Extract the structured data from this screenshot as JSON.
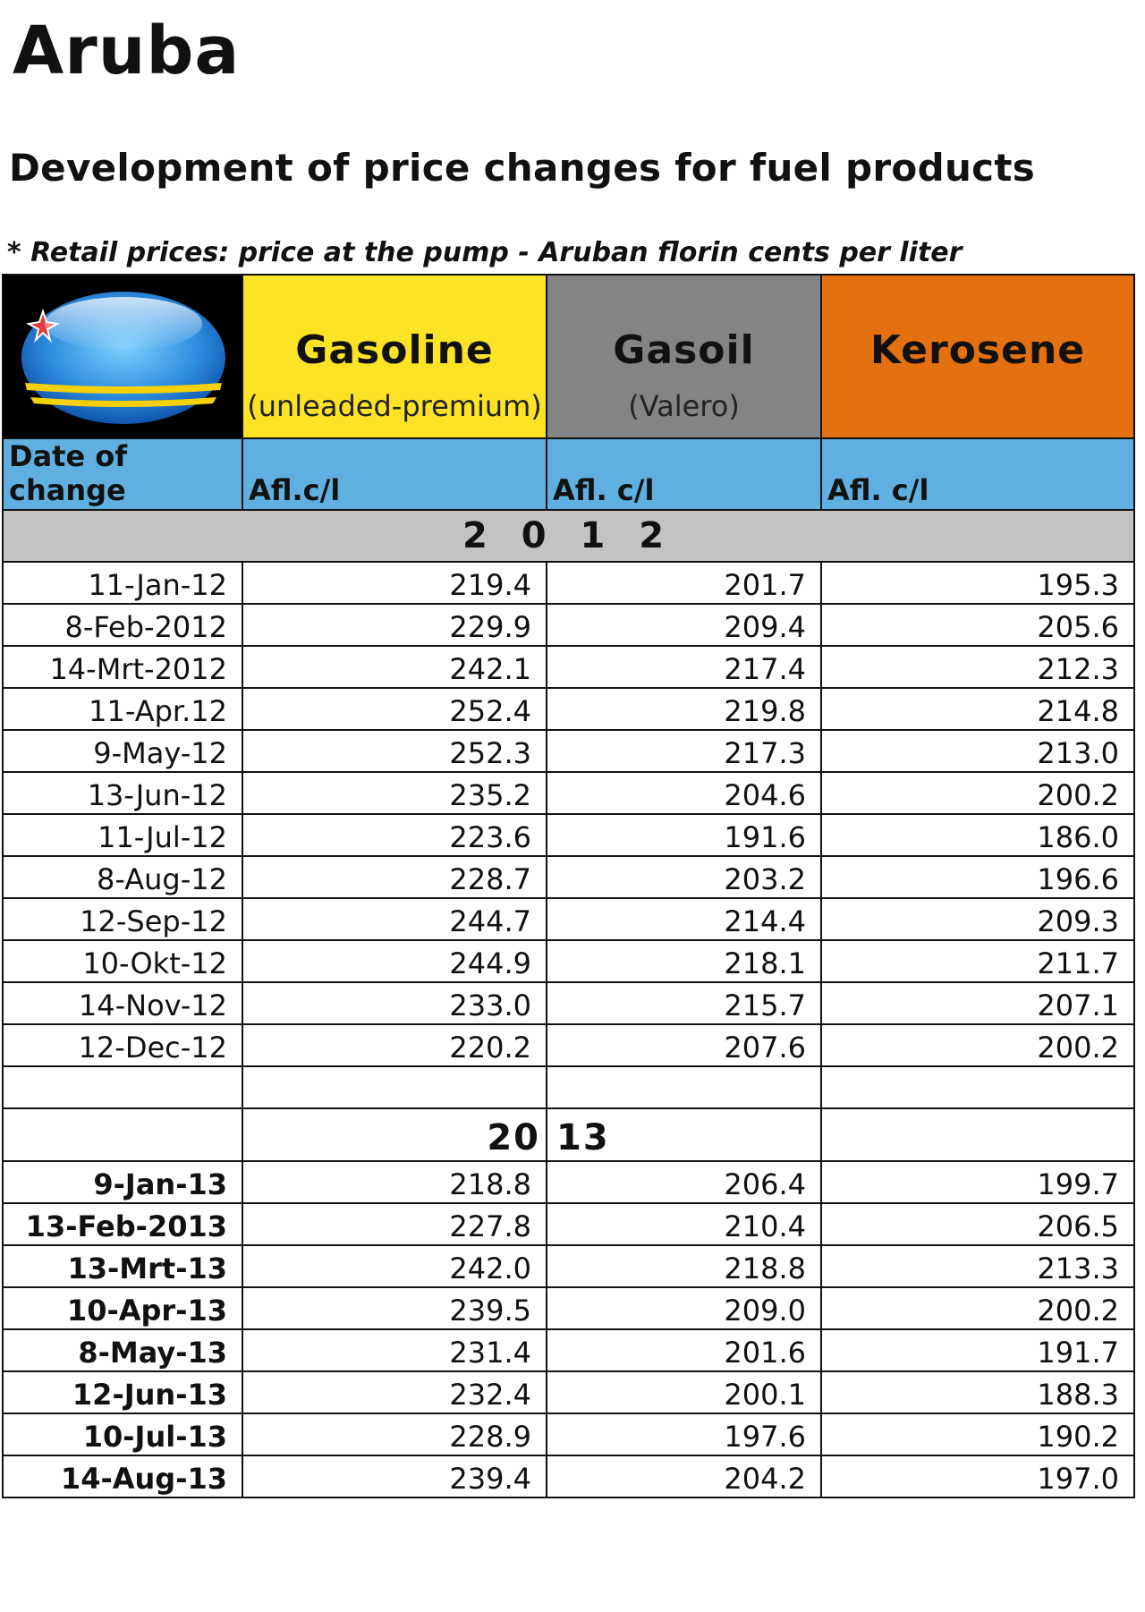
{
  "page": {
    "title": "Aruba",
    "subtitle": "Development of price changes for fuel products",
    "note": "* Retail prices: price at the pump - Aruban florin cents per liter"
  },
  "products": [
    {
      "name": "Gasoline",
      "sub": "(unleaded-premium)",
      "color": "#fde326"
    },
    {
      "name": "Gasoil",
      "sub": "(Valero)",
      "color": "#848484"
    },
    {
      "name": "Kerosene",
      "sub": "",
      "color": "#e4700f"
    }
  ],
  "units": {
    "date": "Date of change",
    "gasoline": "Afl.c/l",
    "gasoil": "Afl. c/l",
    "kerosene": "Afl. c/l"
  },
  "year_2012": "2 0 1 2",
  "year_2013": {
    "left": "20",
    "right": "13"
  },
  "rows_2012": [
    {
      "date": "11-Jan-12",
      "gasoline": "219.4",
      "gasoil": "201.7",
      "kerosene": "195.3"
    },
    {
      "date": "8-Feb-2012",
      "gasoline": "229.9",
      "gasoil": "209.4",
      "kerosene": "205.6"
    },
    {
      "date": "14-Mrt-2012",
      "gasoline": "242.1",
      "gasoil": "217.4",
      "kerosene": "212.3"
    },
    {
      "date": "11-Apr.12",
      "gasoline": "252.4",
      "gasoil": "219.8",
      "kerosene": "214.8"
    },
    {
      "date": "9-May-12",
      "gasoline": "252.3",
      "gasoil": "217.3",
      "kerosene": "213.0"
    },
    {
      "date": "13-Jun-12",
      "gasoline": "235.2",
      "gasoil": "204.6",
      "kerosene": "200.2"
    },
    {
      "date": "11-Jul-12",
      "gasoline": "223.6",
      "gasoil": "191.6",
      "kerosene": "186.0"
    },
    {
      "date": "8-Aug-12",
      "gasoline": "228.7",
      "gasoil": "203.2",
      "kerosene": "196.6"
    },
    {
      "date": "12-Sep-12",
      "gasoline": "244.7",
      "gasoil": "214.4",
      "kerosene": "209.3"
    },
    {
      "date": "10-Okt-12",
      "gasoline": "244.9",
      "gasoil": "218.1",
      "kerosene": "211.7"
    },
    {
      "date": "14-Nov-12",
      "gasoline": "233.0",
      "gasoil": "215.7",
      "kerosene": "207.1"
    },
    {
      "date": "12-Dec-12",
      "gasoline": "220.2",
      "gasoil": "207.6",
      "kerosene": "200.2"
    }
  ],
  "rows_2013": [
    {
      "date": "9-Jan-13",
      "gasoline": "218.8",
      "gasoil": "206.4",
      "kerosene": "199.7"
    },
    {
      "date": "13-Feb-2013",
      "gasoline": "227.8",
      "gasoil": "210.4",
      "kerosene": "206.5"
    },
    {
      "date": "13-Mrt-13",
      "gasoline": "242.0",
      "gasoil": "218.8",
      "kerosene": "213.3"
    },
    {
      "date": "10-Apr-13",
      "gasoline": "239.5",
      "gasoil": "209.0",
      "kerosene": "200.2"
    },
    {
      "date": "8-May-13",
      "gasoline": "231.4",
      "gasoil": "201.6",
      "kerosene": "191.7"
    },
    {
      "date": "12-Jun-13",
      "gasoline": "232.4",
      "gasoil": "200.1",
      "kerosene": "188.3"
    },
    {
      "date": "10-Jul-13",
      "gasoline": "228.9",
      "gasoil": "197.6",
      "kerosene": "190.2"
    },
    {
      "date": "14-Aug-13",
      "gasoline": "239.4",
      "gasoil": "204.2",
      "kerosene": "197.0"
    }
  ]
}
